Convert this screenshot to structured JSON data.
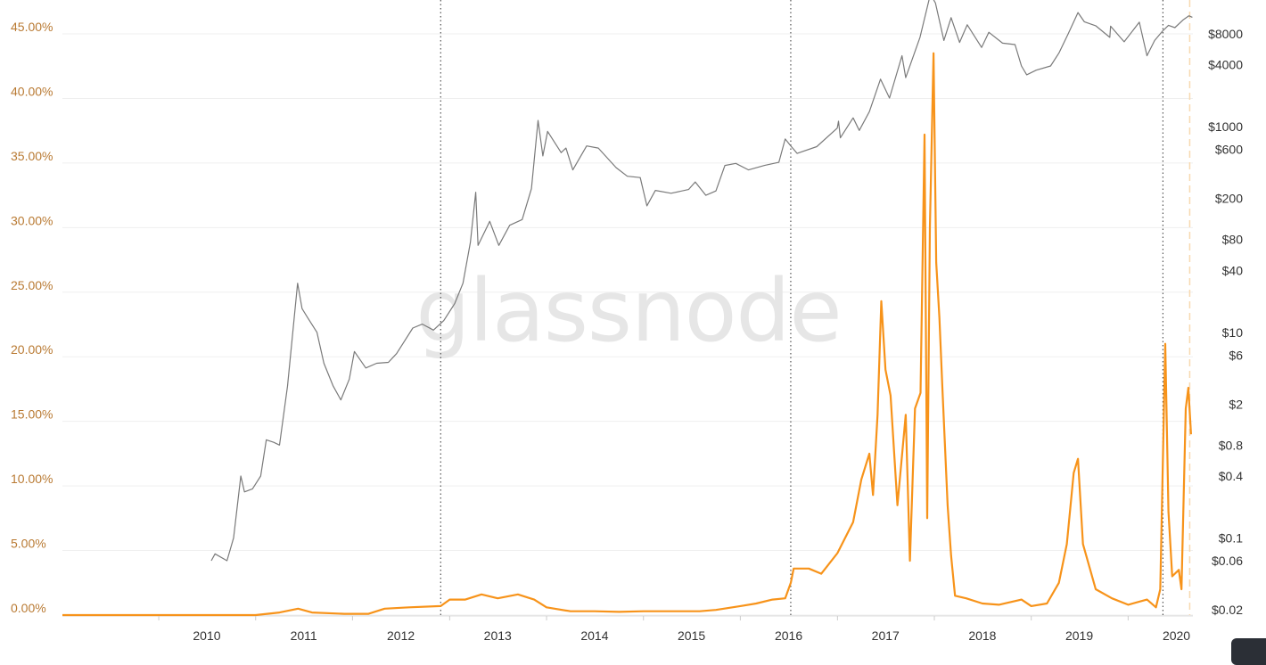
{
  "watermark": "glassnode",
  "colors": {
    "price": "#7a7a7a",
    "metric": "#f7931a",
    "left_axis_text": "#b97a33",
    "grid": "#efefef",
    "halving_line": "#333333",
    "current_line": "#f8d9b0"
  },
  "chart_data": {
    "type": "line",
    "title": "",
    "xlabel": "",
    "x_ticks": [
      "2010",
      "2011",
      "2012",
      "2013",
      "2014",
      "2015",
      "2016",
      "2017",
      "2018",
      "2019",
      "2020"
    ],
    "xlim": [
      "2009-01-03",
      "2020-09-01"
    ],
    "y_left": {
      "ticks": [
        "0.00%",
        "5.00%",
        "10.00%",
        "15.00%",
        "20.00%",
        "25.00%",
        "30.00%",
        "35.00%",
        "40.00%",
        "45.00%"
      ],
      "ylim": [
        0,
        45
      ]
    },
    "y_right": {
      "scale": "log",
      "ticks": [
        "$0.02",
        "$0.06",
        "$0.1",
        "$0.4",
        "$0.8",
        "$2",
        "$6",
        "$10",
        "$40",
        "$80",
        "$200",
        "$600",
        "$1000",
        "$4000",
        "$8000"
      ],
      "tick_values": [
        0.02,
        0.06,
        0.1,
        0.4,
        0.8,
        2,
        6,
        10,
        40,
        80,
        200,
        600,
        1000,
        4000,
        8000
      ]
    },
    "vertical_markers": [
      {
        "date": "2012-11-28",
        "style": "dotted"
      },
      {
        "date": "2016-07-09",
        "style": "dotted"
      },
      {
        "date": "2020-05-11",
        "style": "dotted"
      },
      {
        "date": "2020-08-20",
        "style": "dashed"
      }
    ],
    "series": [
      {
        "axis": "right",
        "color": "#7a7a7a",
        "points": [
          [
            "2010-07-18",
            0.06
          ],
          [
            "2010-08-01",
            0.07
          ],
          [
            "2010-09-15",
            0.06
          ],
          [
            "2010-10-10",
            0.1
          ],
          [
            "2010-11-06",
            0.4
          ],
          [
            "2010-11-20",
            0.28
          ],
          [
            "2010-12-20",
            0.3
          ],
          [
            "2011-01-20",
            0.4
          ],
          [
            "2011-02-10",
            0.9
          ],
          [
            "2011-03-10",
            0.85
          ],
          [
            "2011-04-01",
            0.8
          ],
          [
            "2011-05-01",
            3.0
          ],
          [
            "2011-06-08",
            30
          ],
          [
            "2011-06-25",
            17
          ],
          [
            "2011-07-15",
            14
          ],
          [
            "2011-08-20",
            10
          ],
          [
            "2011-09-15",
            5.0
          ],
          [
            "2011-10-20",
            3.0
          ],
          [
            "2011-11-18",
            2.2
          ],
          [
            "2011-12-20",
            3.5
          ],
          [
            "2012-01-08",
            6.5
          ],
          [
            "2012-02-20",
            4.5
          ],
          [
            "2012-04-01",
            5.0
          ],
          [
            "2012-05-15",
            5.1
          ],
          [
            "2012-06-15",
            6.2
          ],
          [
            "2012-08-15",
            11.0
          ],
          [
            "2012-09-20",
            12.0
          ],
          [
            "2012-11-01",
            10.5
          ],
          [
            "2012-12-10",
            13.0
          ],
          [
            "2013-01-20",
            19
          ],
          [
            "2013-02-20",
            30
          ],
          [
            "2013-03-20",
            75
          ],
          [
            "2013-04-09",
            230
          ],
          [
            "2013-04-18",
            70
          ],
          [
            "2013-06-01",
            120
          ],
          [
            "2013-07-05",
            70
          ],
          [
            "2013-08-15",
            110
          ],
          [
            "2013-10-01",
            125
          ],
          [
            "2013-11-05",
            250
          ],
          [
            "2013-11-30",
            1150
          ],
          [
            "2013-12-18",
            520
          ],
          [
            "2014-01-05",
            900
          ],
          [
            "2014-02-25",
            560
          ],
          [
            "2014-03-15",
            620
          ],
          [
            "2014-04-10",
            380
          ],
          [
            "2014-06-01",
            650
          ],
          [
            "2014-07-15",
            620
          ],
          [
            "2014-09-20",
            400
          ],
          [
            "2014-11-01",
            330
          ],
          [
            "2014-12-20",
            320
          ],
          [
            "2015-01-14",
            170
          ],
          [
            "2015-02-15",
            240
          ],
          [
            "2015-04-15",
            225
          ],
          [
            "2015-06-20",
            245
          ],
          [
            "2015-07-15",
            290
          ],
          [
            "2015-08-24",
            215
          ],
          [
            "2015-10-01",
            237
          ],
          [
            "2015-11-04",
            420
          ],
          [
            "2015-12-15",
            440
          ],
          [
            "2016-02-01",
            380
          ],
          [
            "2016-04-01",
            420
          ],
          [
            "2016-05-25",
            450
          ],
          [
            "2016-06-18",
            760
          ],
          [
            "2016-07-09",
            650
          ],
          [
            "2016-08-02",
            550
          ],
          [
            "2016-10-15",
            640
          ],
          [
            "2016-12-31",
            970
          ],
          [
            "2017-01-05",
            1130
          ],
          [
            "2017-01-12",
            780
          ],
          [
            "2017-03-01",
            1220
          ],
          [
            "2017-03-24",
            920
          ],
          [
            "2017-05-01",
            1400
          ],
          [
            "2017-06-12",
            2900
          ],
          [
            "2017-07-16",
            1900
          ],
          [
            "2017-09-01",
            4900
          ],
          [
            "2017-09-15",
            3000
          ],
          [
            "2017-11-08",
            7400
          ],
          [
            "2017-12-17",
            19500
          ],
          [
            "2018-01-05",
            16000
          ],
          [
            "2018-02-06",
            6900
          ],
          [
            "2018-03-05",
            11500
          ],
          [
            "2018-04-06",
            6600
          ],
          [
            "2018-05-05",
            9800
          ],
          [
            "2018-06-28",
            5900
          ],
          [
            "2018-07-25",
            8300
          ],
          [
            "2018-09-15",
            6500
          ],
          [
            "2018-11-01",
            6300
          ],
          [
            "2018-11-25",
            3900
          ],
          [
            "2018-12-15",
            3200
          ],
          [
            "2019-01-20",
            3550
          ],
          [
            "2019-03-15",
            3900
          ],
          [
            "2019-04-15",
            5200
          ],
          [
            "2019-05-20",
            8000
          ],
          [
            "2019-06-26",
            12900
          ],
          [
            "2019-07-20",
            10500
          ],
          [
            "2019-09-01",
            9600
          ],
          [
            "2019-10-24",
            7400
          ],
          [
            "2019-10-27",
            9500
          ],
          [
            "2019-12-17",
            6700
          ],
          [
            "2020-02-12",
            10400
          ],
          [
            "2020-03-12",
            4900
          ],
          [
            "2020-04-10",
            6900
          ],
          [
            "2020-05-11",
            8600
          ],
          [
            "2020-06-01",
            9700
          ],
          [
            "2020-06-25",
            9200
          ],
          [
            "2020-07-27",
            11000
          ],
          [
            "2020-08-17",
            12000
          ],
          [
            "2020-08-30",
            11600
          ]
        ]
      },
      {
        "axis": "left",
        "color": "#f7931a",
        "points": [
          [
            "2009-01-03",
            0.0
          ],
          [
            "2011-01-01",
            0.0
          ],
          [
            "2011-04-01",
            0.2
          ],
          [
            "2011-06-10",
            0.5
          ],
          [
            "2011-08-01",
            0.2
          ],
          [
            "2011-12-01",
            0.1
          ],
          [
            "2012-01-01",
            0.1
          ],
          [
            "2012-03-01",
            0.1
          ],
          [
            "2012-05-01",
            0.5
          ],
          [
            "2012-08-01",
            0.6
          ],
          [
            "2012-11-28",
            0.7
          ],
          [
            "2013-01-01",
            1.2
          ],
          [
            "2013-03-01",
            1.2
          ],
          [
            "2013-05-01",
            1.6
          ],
          [
            "2013-07-01",
            1.3
          ],
          [
            "2013-09-15",
            1.6
          ],
          [
            "2013-11-15",
            1.2
          ],
          [
            "2014-01-01",
            0.6
          ],
          [
            "2014-04-01",
            0.3
          ],
          [
            "2014-07-01",
            0.3
          ],
          [
            "2014-10-01",
            0.25
          ],
          [
            "2015-01-01",
            0.3
          ],
          [
            "2015-04-01",
            0.3
          ],
          [
            "2015-08-01",
            0.3
          ],
          [
            "2015-10-01",
            0.4
          ],
          [
            "2016-01-01",
            0.7
          ],
          [
            "2016-03-01",
            0.9
          ],
          [
            "2016-05-01",
            1.2
          ],
          [
            "2016-06-18",
            1.3
          ],
          [
            "2016-07-09",
            2.5
          ],
          [
            "2016-07-20",
            3.6
          ],
          [
            "2016-09-15",
            3.6
          ],
          [
            "2016-11-01",
            3.2
          ],
          [
            "2017-01-01",
            4.8
          ],
          [
            "2017-03-01",
            7.2
          ],
          [
            "2017-04-01",
            10.5
          ],
          [
            "2017-05-01",
            12.5
          ],
          [
            "2017-05-15",
            9.3
          ],
          [
            "2017-06-01",
            15.5
          ],
          [
            "2017-06-15",
            24.3
          ],
          [
            "2017-07-01",
            19.0
          ],
          [
            "2017-07-20",
            17.0
          ],
          [
            "2017-08-15",
            8.5
          ],
          [
            "2017-09-15",
            15.5
          ],
          [
            "2017-10-01",
            4.2
          ],
          [
            "2017-10-20",
            16.0
          ],
          [
            "2017-11-10",
            17.2
          ],
          [
            "2017-11-25",
            37.2
          ],
          [
            "2017-12-05",
            7.5
          ],
          [
            "2017-12-15",
            30.0
          ],
          [
            "2017-12-29",
            43.5
          ],
          [
            "2018-01-08",
            27.3
          ],
          [
            "2018-01-20",
            23.0
          ],
          [
            "2018-02-01",
            17.3
          ],
          [
            "2018-02-20",
            8.5
          ],
          [
            "2018-03-05",
            4.6
          ],
          [
            "2018-03-20",
            1.5
          ],
          [
            "2018-05-01",
            1.3
          ],
          [
            "2018-07-01",
            0.9
          ],
          [
            "2018-09-01",
            0.8
          ],
          [
            "2018-11-25",
            1.2
          ],
          [
            "2019-01-01",
            0.7
          ],
          [
            "2019-03-01",
            0.9
          ],
          [
            "2019-04-15",
            2.5
          ],
          [
            "2019-05-15",
            5.5
          ],
          [
            "2019-06-10",
            11.0
          ],
          [
            "2019-06-26",
            12.1
          ],
          [
            "2019-07-15",
            5.5
          ],
          [
            "2019-09-01",
            2.0
          ],
          [
            "2019-11-01",
            1.3
          ],
          [
            "2020-01-01",
            0.8
          ],
          [
            "2020-03-12",
            1.2
          ],
          [
            "2020-04-15",
            0.6
          ],
          [
            "2020-05-01",
            2.0
          ],
          [
            "2020-05-20",
            21.0
          ],
          [
            "2020-06-01",
            8.0
          ],
          [
            "2020-06-15",
            3.0
          ],
          [
            "2020-07-10",
            3.5
          ],
          [
            "2020-07-20",
            2.0
          ],
          [
            "2020-08-05",
            16.0
          ],
          [
            "2020-08-15",
            17.6
          ],
          [
            "2020-08-25",
            14.0
          ]
        ]
      }
    ]
  }
}
